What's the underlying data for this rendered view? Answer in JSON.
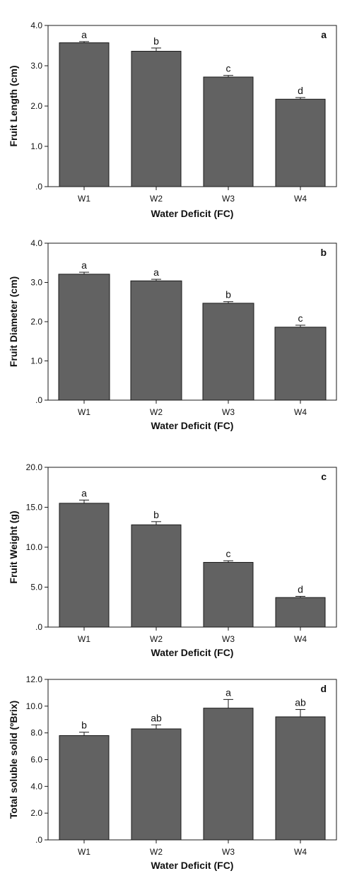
{
  "colors": {
    "bar": "#626262",
    "bar_stroke": "#1a1a1a",
    "axis": "#1a1a1a"
  },
  "chart_data": [
    {
      "type": "bar",
      "panel_label": "a",
      "categories": [
        "W1",
        "W2",
        "W3",
        "W4"
      ],
      "values": [
        3.57,
        3.36,
        2.72,
        2.17
      ],
      "errors": [
        0.03,
        0.08,
        0.04,
        0.04
      ],
      "significance": [
        "a",
        "b",
        "c",
        "d"
      ],
      "xlabel": "Water Deficit (FC)",
      "ylabel": "Fruit Length (cm)",
      "ylim": [
        0,
        4
      ],
      "yticks": [
        0,
        1,
        2,
        3,
        4
      ],
      "ytick_labels": [
        ".0",
        "1.0",
        "2.0",
        "3.0",
        "4.0"
      ],
      "grid": false,
      "error_bars": true
    },
    {
      "type": "bar",
      "panel_label": "b",
      "categories": [
        "W1",
        "W2",
        "W3",
        "W4"
      ],
      "values": [
        3.21,
        3.04,
        2.47,
        1.86
      ],
      "errors": [
        0.05,
        0.04,
        0.04,
        0.05
      ],
      "significance": [
        "a",
        "a",
        "b",
        "c"
      ],
      "xlabel": "Water Deficit (FC)",
      "ylabel": "Fruit Diameter (cm)",
      "ylim": [
        0,
        4
      ],
      "yticks": [
        0,
        1,
        2,
        3,
        4
      ],
      "ytick_labels": [
        ".0",
        "1.0",
        "2.0",
        "3.0",
        "4.0"
      ],
      "grid": false,
      "error_bars": true
    },
    {
      "type": "bar",
      "panel_label": "c",
      "categories": [
        "W1",
        "W2",
        "W3",
        "W4"
      ],
      "values": [
        15.5,
        12.8,
        8.1,
        3.7
      ],
      "errors": [
        0.4,
        0.4,
        0.2,
        0.15
      ],
      "significance": [
        "a",
        "b",
        "c",
        "d"
      ],
      "xlabel": "Water Deficit (FC)",
      "ylabel": "Fruit Weight (g)",
      "ylim": [
        0,
        20
      ],
      "yticks": [
        0,
        5,
        10,
        15,
        20
      ],
      "ytick_labels": [
        ".0",
        "5.0",
        "10.0",
        "15.0",
        "20.0"
      ],
      "grid": false,
      "error_bars": true
    },
    {
      "type": "bar",
      "panel_label": "d",
      "categories": [
        "W1",
        "W2",
        "W3",
        "W4"
      ],
      "values": [
        7.8,
        8.3,
        9.85,
        9.2
      ],
      "errors": [
        0.25,
        0.3,
        0.65,
        0.55
      ],
      "significance": [
        "b",
        "ab",
        "a",
        "ab"
      ],
      "xlabel": "Water Deficit (FC)",
      "ylabel": "Total soluble solid (ºBrix)",
      "ylim": [
        0,
        12
      ],
      "yticks": [
        0,
        2,
        4,
        6,
        8,
        10,
        12
      ],
      "ytick_labels": [
        ".0",
        "2.0",
        "4.0",
        "6.0",
        "8.0",
        "10.0",
        "12.0"
      ],
      "grid": false,
      "error_bars": true
    }
  ]
}
